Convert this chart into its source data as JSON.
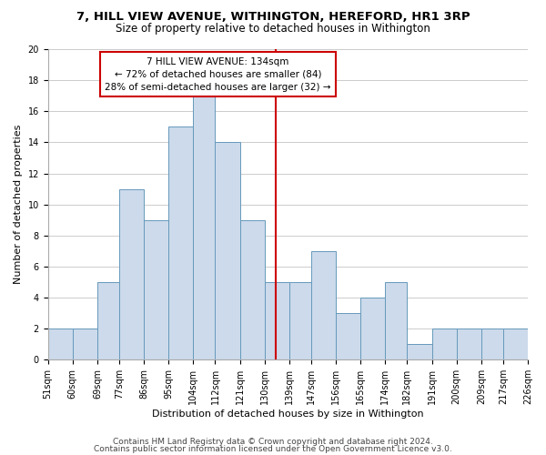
{
  "title": "7, HILL VIEW AVENUE, WITHINGTON, HEREFORD, HR1 3RP",
  "subtitle": "Size of property relative to detached houses in Withington",
  "xlabel": "Distribution of detached houses by size in Withington",
  "ylabel": "Number of detached properties",
  "bin_labels": [
    "51sqm",
    "60sqm",
    "69sqm",
    "77sqm",
    "86sqm",
    "95sqm",
    "104sqm",
    "112sqm",
    "121sqm",
    "130sqm",
    "139sqm",
    "147sqm",
    "156sqm",
    "165sqm",
    "174sqm",
    "182sqm",
    "191sqm",
    "200sqm",
    "209sqm",
    "217sqm",
    "226sqm"
  ],
  "bin_edges": [
    51,
    60,
    69,
    77,
    86,
    95,
    104,
    112,
    121,
    130,
    139,
    147,
    156,
    165,
    174,
    182,
    191,
    200,
    209,
    217,
    226
  ],
  "bar_heights": [
    2,
    2,
    5,
    11,
    9,
    15,
    17,
    14,
    9,
    5,
    5,
    7,
    3,
    4,
    5,
    1,
    2,
    2,
    2,
    2
  ],
  "bar_color": "#ccdaeb",
  "bar_edge_color": "#6699bb",
  "property_value": 134,
  "vline_color": "#cc0000",
  "annotation_line1": "7 HILL VIEW AVENUE: 134sqm",
  "annotation_line2": "← 72% of detached houses are smaller (84)",
  "annotation_line3": "28% of semi-detached houses are larger (32) →",
  "annotation_box_color": "#ffffff",
  "annotation_box_edge_color": "#cc0000",
  "ylim": [
    0,
    20
  ],
  "yticks": [
    0,
    2,
    4,
    6,
    8,
    10,
    12,
    14,
    16,
    18,
    20
  ],
  "footer1": "Contains HM Land Registry data © Crown copyright and database right 2024.",
  "footer2": "Contains public sector information licensed under the Open Government Licence v3.0.",
  "background_color": "#ffffff",
  "grid_color": "#cccccc",
  "title_fontsize": 9.5,
  "subtitle_fontsize": 8.5,
  "axis_label_fontsize": 8,
  "tick_fontsize": 7,
  "annotation_fontsize": 7.5,
  "footer_fontsize": 6.5
}
